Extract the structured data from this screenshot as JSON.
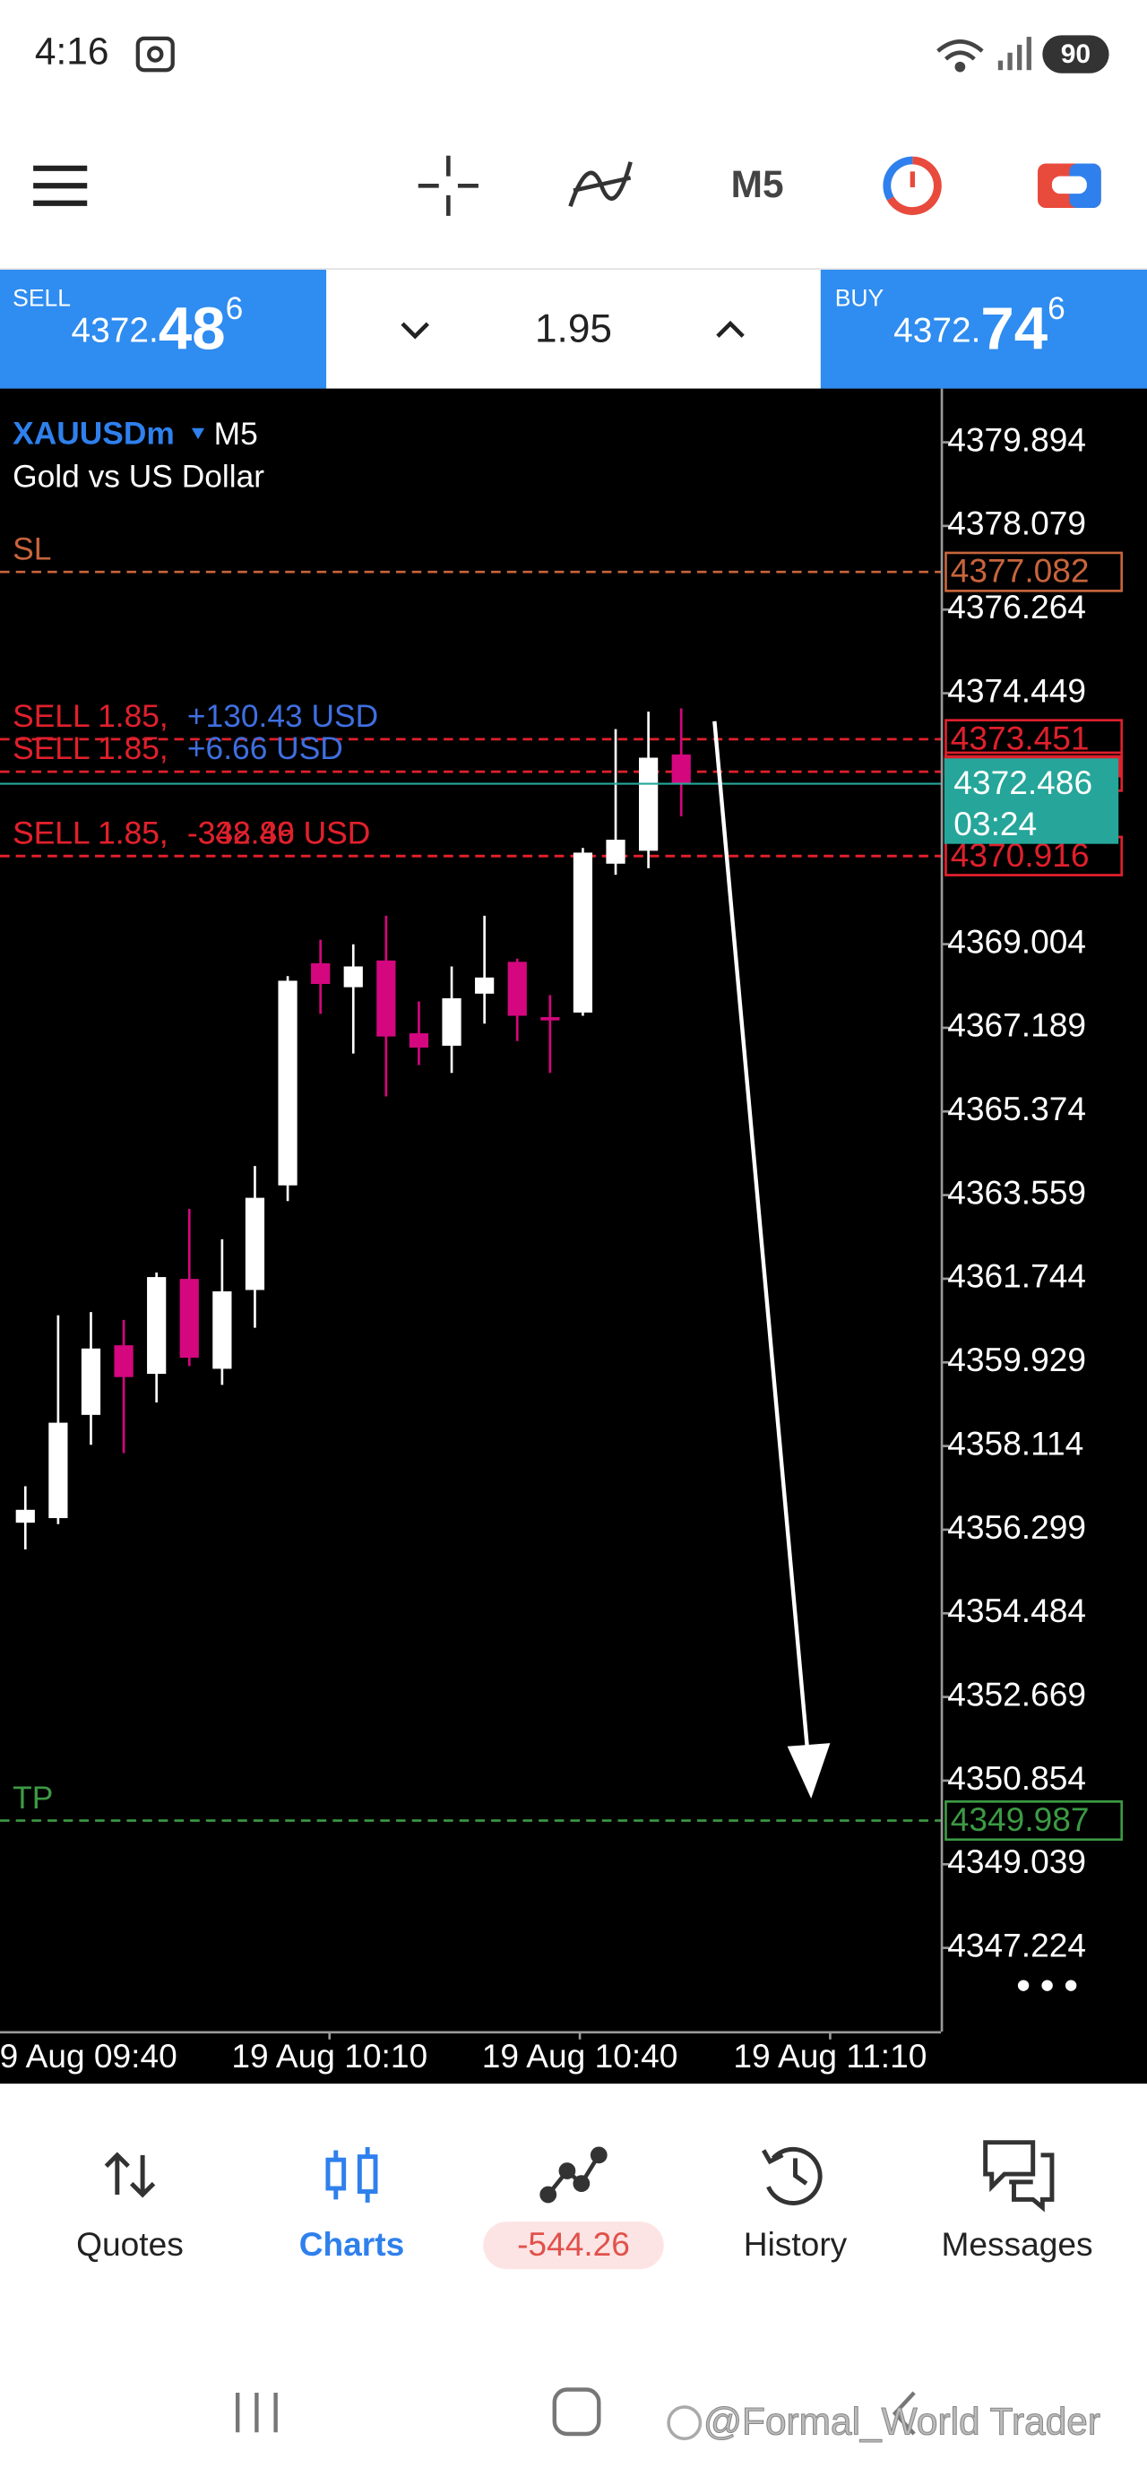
{
  "status_bar": {
    "time": "4:16",
    "battery": "90"
  },
  "toolbar": {
    "timeframe": "M5"
  },
  "trade_panel": {
    "sell": {
      "label": "SELL",
      "price": "4372.",
      "big": "48",
      "sup": "6"
    },
    "volume": "1.95",
    "buy": {
      "label": "BUY",
      "price": "4372.",
      "big": "74",
      "sup": "6"
    }
  },
  "chart_data": {
    "type": "candlestick",
    "symbol": "XAUUSDm",
    "timeframe": "M5",
    "description": "Gold vs US Dollar",
    "candles": {
      "open": [
        4356.45,
        4356.55,
        4358.79,
        4360.3,
        4359.68,
        4361.74,
        4359.79,
        4361.5,
        4363.77,
        4368.59,
        4368.07,
        4368.65,
        4367.07,
        4366.8,
        4367.93,
        4368.62,
        4367.42,
        4367.52,
        4370.75,
        4371.03,
        4373.12
      ],
      "high": [
        4357.24,
        4360.95,
        4361.02,
        4360.85,
        4361.88,
        4363.26,
        4362.6,
        4364.19,
        4368.31,
        4369.1,
        4369.0,
        4369.62,
        4367.76,
        4368.52,
        4369.62,
        4368.69,
        4367.9,
        4371.09,
        4373.67,
        4374.05,
        4374.12
      ],
      "low": [
        4355.87,
        4356.42,
        4358.14,
        4357.96,
        4359.06,
        4359.85,
        4359.44,
        4360.68,
        4363.43,
        4367.49,
        4366.63,
        4365.7,
        4366.38,
        4366.21,
        4367.28,
        4366.9,
        4366.21,
        4367.45,
        4370.51,
        4370.65,
        4371.78
      ],
      "close": [
        4356.73,
        4358.62,
        4360.23,
        4359.61,
        4361.78,
        4360.03,
        4361.47,
        4363.5,
        4368.21,
        4368.14,
        4368.52,
        4367.0,
        4366.76,
        4367.83,
        4368.28,
        4367.45,
        4367.35,
        4370.99,
        4371.27,
        4373.05,
        4372.5
      ]
    },
    "colors": {
      "up": "#ffffff",
      "down": "#d4077f"
    },
    "ylim": [
      4345.41,
      4381.06
    ],
    "yticks": [
      4379.894,
      4378.079,
      4376.264,
      4374.449,
      4369.004,
      4367.189,
      4365.374,
      4363.559,
      4361.744,
      4359.929,
      4358.114,
      4356.299,
      4354.484,
      4352.669,
      4350.854,
      4349.039,
      4347.224
    ],
    "xtick_labels": [
      "19 Aug 09:40",
      "19 Aug 10:10",
      "19 Aug 10:40",
      "19 Aug 11:10"
    ],
    "levels": [
      {
        "label": "SL",
        "value": 4377.082,
        "color": "#c8643c"
      },
      {
        "label": "TP",
        "value": 4349.987,
        "color": "#3c9a44"
      }
    ],
    "positions": [
      {
        "label": "SELL 1.85,",
        "profit": "+130.43 USD",
        "price": 4373.451,
        "profit_color": "#3f6fe0"
      },
      {
        "label": "SELL 1.85,",
        "profit": "+6.66 USD",
        "price": 4372.746,
        "profit_color": "#3f6fe0"
      },
      {
        "label": "SELL 1.85,",
        "profit": "-338.86 USD",
        "price": 4370.916,
        "profit_color": "#e0202c"
      },
      {
        "label": "SELL 1.85,",
        "profit": "-342.49 USD",
        "price": 4370.916,
        "profit_color": "#e0202c"
      }
    ],
    "position_color": "#e0202c",
    "bid": {
      "value": 4372.486,
      "countdown": "03:24",
      "color": "#26a69a"
    }
  },
  "bottom_nav": {
    "items": [
      {
        "label": "Quotes"
      },
      {
        "label": "Charts"
      },
      {
        "label": "-544.26"
      },
      {
        "label": "History"
      },
      {
        "label": "Messages"
      }
    ]
  },
  "watermark": "@Formal_World Trader"
}
